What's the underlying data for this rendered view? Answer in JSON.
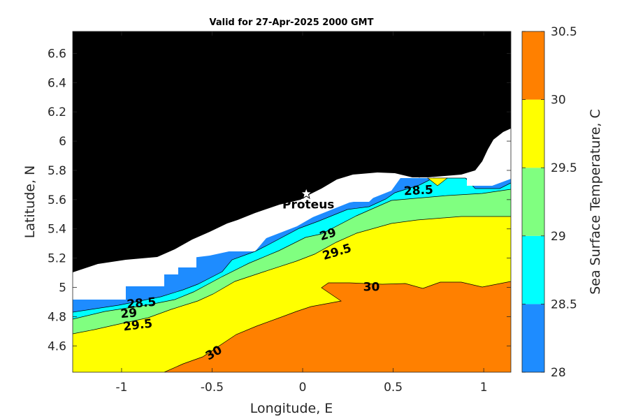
{
  "chart_data": {
    "type": "heatmap",
    "title": "Valid for 27-Apr-2025 2000 GMT",
    "xlabel": "Longitude, E",
    "ylabel": "Latitude, N",
    "xlim": [
      -1.27,
      1.15
    ],
    "ylim": [
      4.42,
      6.75
    ],
    "x_ticks": [
      "-1",
      "-0.5",
      "0",
      "0.5",
      "1"
    ],
    "y_ticks": [
      "4.6",
      "4.8",
      "5",
      "5.2",
      "5.4",
      "5.6",
      "5.8",
      "6",
      "6.2",
      "6.4",
      "6.6"
    ],
    "colorbar": {
      "label": "Sea Surface Temperature, C",
      "levels": [
        28,
        28.5,
        29,
        29.5,
        30,
        30.5
      ],
      "tick_labels": [
        "28",
        "28.5",
        "29",
        "29.5",
        "30",
        "30.5"
      ],
      "colors": [
        "#1e8cff",
        "#00ffff",
        "#80ff80",
        "#ffff00",
        "#ff8000"
      ]
    },
    "land_color": "#000000",
    "nodata_color": "#ffffff",
    "marker": {
      "label": "Proteus",
      "lon": 0.02,
      "lat": 5.64,
      "symbol": "star"
    },
    "contour_labels": [
      {
        "text": "28.5",
        "lon": -0.89,
        "lat": 4.89,
        "angle": -5
      },
      {
        "text": "29",
        "lon": -0.96,
        "lat": 4.82,
        "angle": -5
      },
      {
        "text": "29.5",
        "lon": -0.91,
        "lat": 4.74,
        "angle": -7
      },
      {
        "text": "29",
        "lon": 0.14,
        "lat": 5.36,
        "angle": -17
      },
      {
        "text": "29.5",
        "lon": 0.19,
        "lat": 5.24,
        "angle": -17
      },
      {
        "text": "28.5",
        "lon": 0.64,
        "lat": 5.66,
        "angle": -3
      },
      {
        "text": "30",
        "lon": 0.38,
        "lat": 5.0,
        "angle": 0
      },
      {
        "text": "30",
        "lon": -0.49,
        "lat": 4.55,
        "angle": -30
      }
    ]
  }
}
